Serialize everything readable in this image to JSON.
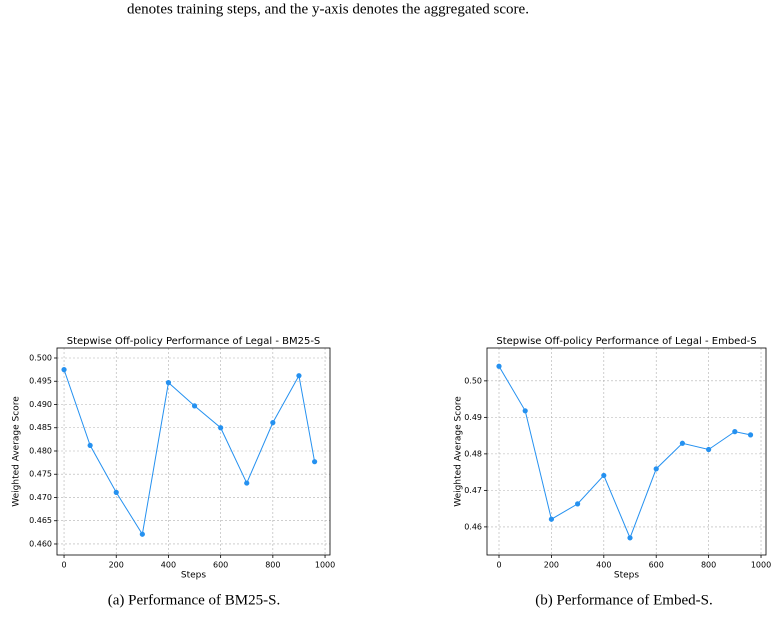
{
  "text": "denotes training steps, and the y-axis denotes the aggregated score.",
  "chart_data": [
    {
      "type": "line",
      "title": "Stepwise Off-policy Performance of Legal - BM25-S",
      "xlabel": "Steps",
      "ylabel": "Weighted Average Score",
      "x": [
        0,
        100,
        200,
        300,
        400,
        500,
        600,
        700,
        800,
        900,
        960
      ],
      "values": [
        0.4975,
        0.4812,
        0.4711,
        0.4621,
        0.4947,
        0.4897,
        0.485,
        0.4731,
        0.4861,
        0.4962,
        0.4777
      ],
      "color": "#2591f0",
      "grid": true,
      "xlim": [
        -27,
        1019
      ],
      "ylim": [
        0.45763,
        0.50215
      ],
      "xticks": [
        0,
        200,
        400,
        600,
        800,
        1000
      ],
      "yticks": [
        {
          "value": 0.46,
          "label": "0.460"
        },
        {
          "value": 0.465,
          "label": "0.465"
        },
        {
          "value": 0.47,
          "label": "0.470"
        },
        {
          "value": 0.475,
          "label": "0.475"
        },
        {
          "value": 0.48,
          "label": "0.480"
        },
        {
          "value": 0.485,
          "label": "0.485"
        },
        {
          "value": 0.49,
          "label": "0.490"
        },
        {
          "value": 0.495,
          "label": "0.495"
        },
        {
          "value": 0.5,
          "label": "0.500"
        }
      ],
      "caption": "(a) Performance of BM25-S."
    },
    {
      "type": "line",
      "title": "Stepwise Off-policy Performance of Legal - Embed-S",
      "xlabel": "Steps",
      "ylabel": "Weighted Average Score",
      "x": [
        0,
        100,
        200,
        300,
        400,
        500,
        600,
        700,
        800,
        900,
        960
      ],
      "values": [
        0.504,
        0.4918,
        0.4621,
        0.4663,
        0.4741,
        0.457,
        0.4759,
        0.4829,
        0.4812,
        0.4861,
        0.4852
      ],
      "color": "#2591f0",
      "grid": true,
      "xlim": [
        -45.8,
        1019
      ],
      "ylim": [
        0.4523,
        0.509
      ],
      "xticks": [
        0,
        200,
        400,
        600,
        800,
        1000
      ],
      "yticks": [
        0.46,
        0.47,
        0.48,
        0.49,
        {
          "value": 0.5,
          "label": "0.50"
        }
      ],
      "caption": "(b) Performance of Embed-S."
    }
  ]
}
